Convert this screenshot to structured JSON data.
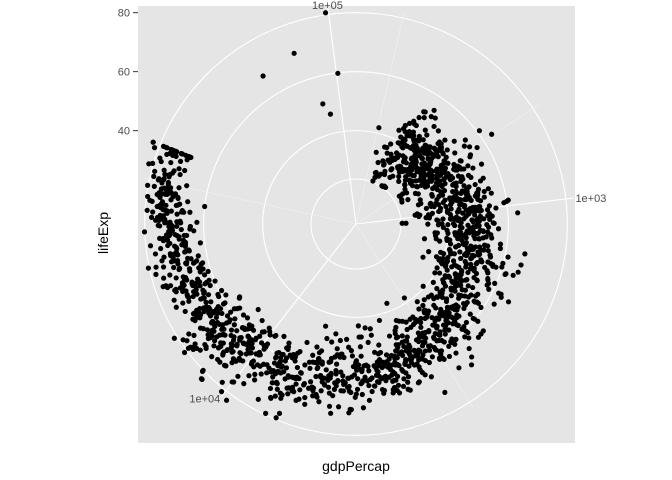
{
  "chart_data": {
    "type": "scatter",
    "coord": "polar",
    "xlabel": "gdpPercap",
    "ylabel": "lifeExp",
    "x_scale": "log10",
    "x_ticks": [
      "1e+03",
      "1e+04",
      "1e+05"
    ],
    "x_tick_values": [
      1000,
      10000,
      100000
    ],
    "y_ticks": [
      "40",
      "60",
      "80"
    ],
    "y_tick_values": [
      40,
      60,
      80
    ],
    "xlim": [
      241.17,
      113523.13
    ],
    "ylim": [
      23.6,
      82.6
    ],
    "grid": true,
    "legend": "none",
    "point_color": "#000000",
    "panel_color": "#e5e5e5",
    "grid_color": "#ffffff",
    "n_points": 1704,
    "dataset_note": "",
    "points": []
  }
}
